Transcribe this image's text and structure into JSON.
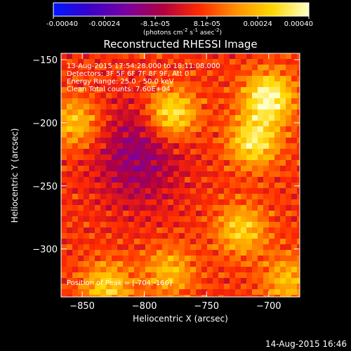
{
  "chart_data": {
    "type": "heatmap",
    "title": "Reconstructed RHESSI Image",
    "xlabel": "Heliocentric X (arcsec)",
    "ylabel": "Heliocentric Y (arcsec)",
    "x_ticks": [
      -850,
      -800,
      -750,
      -700
    ],
    "y_ticks": [
      -150,
      -200,
      -250,
      -300
    ],
    "xlim": [
      -867,
      -675
    ],
    "ylim": [
      -338,
      -145
    ],
    "colorbar": {
      "ticks": [
        "-0.00040",
        "-0.00024",
        "-8.1e-05",
        "8.1e-05",
        "0.00024",
        "0.00040"
      ],
      "range": [
        -0.0004,
        0.0004
      ],
      "units_text": "(photons cm",
      "units_exp1": "-2",
      "units_mid": " s",
      "units_exp2": "-1",
      "units_mid2": " asec",
      "units_exp3": "-2",
      "units_end": ")",
      "colors": [
        "#0018ff",
        "#3a00c8",
        "#7a00a0",
        "#b00040",
        "#ff2a00",
        "#ff9000",
        "#ffd800",
        "#ffffc8"
      ]
    },
    "info_lines": [
      "13-Aug-2015 17:54:28.000 to 18:11:08.000",
      "Detectors: 3F 5F 6F 7F 8F 9F, Att 0",
      "Energy Range: 25.0 - 50.0 keV",
      "Clean     Total counts: 7.60E+04"
    ],
    "peak_label": "Position of Peak = [-704,-166]",
    "peak": [
      -704,
      -166
    ],
    "sources": [
      {
        "x": -700,
        "y": -180,
        "value": 0.0004
      },
      {
        "x": -712,
        "y": -215,
        "value": 0.00034
      },
      {
        "x": -778,
        "y": -193,
        "value": 0.00036
      },
      {
        "x": -855,
        "y": -200,
        "value": 0.00026
      },
      {
        "x": -830,
        "y": -330,
        "value": 0.00028
      },
      {
        "x": -780,
        "y": -318,
        "value": 0.00024
      },
      {
        "x": -722,
        "y": -285,
        "value": 0.00028
      },
      {
        "x": -685,
        "y": -325,
        "value": 0.00024
      }
    ],
    "background_value": 6e-05,
    "negative_region": {
      "x": -805,
      "y": -225,
      "value": -0.00012
    }
  },
  "footer_date": "14-Aug-2015 16:46"
}
